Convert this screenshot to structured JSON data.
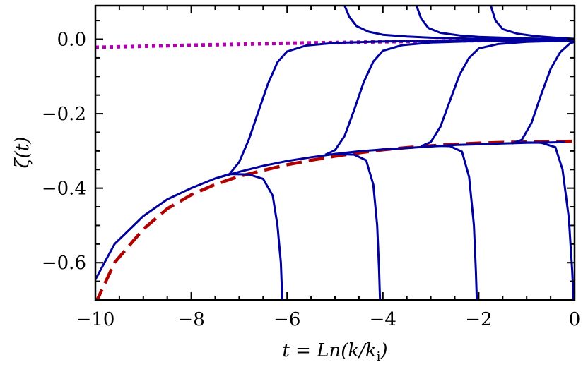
{
  "chart_data": {
    "type": "line",
    "xlabel": "t = Ln(k/k",
    "xlabel_sub": "i",
    "xlabel_close": ")",
    "ylabel": "ζ(t)",
    "xlim": [
      -10,
      0
    ],
    "ylim": [
      -0.7,
      0.09
    ],
    "x_ticks": [
      -10,
      -8,
      -6,
      -4,
      -2,
      0
    ],
    "x_tick_labels": [
      "−10",
      "−8",
      "−6",
      "−4",
      "−2",
      "0"
    ],
    "y_ticks": [
      -0.6,
      -0.4,
      -0.2,
      0.0
    ],
    "y_tick_labels": [
      "−0.6",
      "−0.4",
      "−0.2",
      "0.0"
    ],
    "grid": false,
    "colors": {
      "solid": "#0000a0",
      "dashed": "#b00000",
      "dotted": "#b000b0"
    },
    "series": [
      {
        "style": "dotted",
        "points": [
          [
            -10,
            -0.022
          ],
          [
            -8,
            -0.016
          ],
          [
            -6,
            -0.011
          ],
          [
            -4,
            -0.007
          ],
          [
            -2,
            -0.004
          ],
          [
            0,
            -0.002
          ]
        ]
      },
      {
        "style": "dashed",
        "points": [
          [
            -10,
            -0.71
          ],
          [
            -9.6,
            -0.6
          ],
          [
            -9,
            -0.51
          ],
          [
            -8.5,
            -0.455
          ],
          [
            -8,
            -0.418
          ],
          [
            -7.5,
            -0.39
          ],
          [
            -7,
            -0.368
          ],
          [
            -6.5,
            -0.352
          ],
          [
            -6,
            -0.337
          ],
          [
            -5.5,
            -0.325
          ],
          [
            -5,
            -0.314
          ],
          [
            -4.5,
            -0.305
          ],
          [
            -4,
            -0.297
          ],
          [
            -3.5,
            -0.291
          ],
          [
            -3,
            -0.286
          ],
          [
            -2.5,
            -0.282
          ],
          [
            -2,
            -0.279
          ],
          [
            -1.5,
            -0.277
          ],
          [
            -1,
            -0.276
          ],
          [
            -0.5,
            -0.275
          ],
          [
            0,
            -0.274
          ]
        ]
      },
      {
        "style": "solid",
        "points": [
          [
            -10,
            -0.645
          ],
          [
            -9.6,
            -0.55
          ],
          [
            -9,
            -0.475
          ],
          [
            -8.5,
            -0.43
          ],
          [
            -8,
            -0.4
          ],
          [
            -7.5,
            -0.374
          ],
          [
            -7,
            -0.356
          ],
          [
            -6.5,
            -0.34
          ],
          [
            -6,
            -0.327
          ],
          [
            -5.5,
            -0.317
          ],
          [
            -5,
            -0.308
          ],
          [
            -4.5,
            -0.301
          ],
          [
            -4,
            -0.296
          ],
          [
            -3.5,
            -0.292
          ],
          [
            -3,
            -0.288
          ],
          [
            -2.5,
            -0.284
          ],
          [
            -2,
            -0.282
          ],
          [
            -1.5,
            -0.28
          ],
          [
            -1,
            -0.278
          ],
          [
            -0.5,
            -0.277
          ],
          [
            -0.2,
            -0.276
          ]
        ]
      },
      {
        "style": "solid",
        "points": [
          [
            -7.5,
            -0.374
          ],
          [
            -7.2,
            -0.362
          ],
          [
            -7,
            -0.33
          ],
          [
            -6.8,
            -0.27
          ],
          [
            -6.6,
            -0.195
          ],
          [
            -6.4,
            -0.12
          ],
          [
            -6.2,
            -0.062
          ],
          [
            -6,
            -0.033
          ],
          [
            -5.6,
            -0.017
          ],
          [
            -5,
            -0.01
          ],
          [
            -4,
            -0.006
          ],
          [
            -2,
            -0.004
          ],
          [
            0,
            -0.003
          ]
        ]
      },
      {
        "style": "solid",
        "points": [
          [
            -5.2,
            -0.31
          ],
          [
            -5.0,
            -0.298
          ],
          [
            -4.8,
            -0.26
          ],
          [
            -4.6,
            -0.19
          ],
          [
            -4.4,
            -0.115
          ],
          [
            -4.2,
            -0.06
          ],
          [
            -4,
            -0.031
          ],
          [
            -3.6,
            -0.016
          ],
          [
            -3,
            -0.009
          ],
          [
            -2,
            -0.005
          ],
          [
            0,
            -0.003
          ]
        ]
      },
      {
        "style": "solid",
        "points": [
          [
            -3.2,
            -0.287
          ],
          [
            -3.0,
            -0.276
          ],
          [
            -2.8,
            -0.235
          ],
          [
            -2.6,
            -0.165
          ],
          [
            -2.4,
            -0.095
          ],
          [
            -2.2,
            -0.05
          ],
          [
            -2,
            -0.025
          ],
          [
            -1.6,
            -0.013
          ],
          [
            -1,
            -0.007
          ],
          [
            0,
            -0.004
          ]
        ]
      },
      {
        "style": "solid",
        "points": [
          [
            -1.3,
            -0.28
          ],
          [
            -1.1,
            -0.27
          ],
          [
            -0.9,
            -0.225
          ],
          [
            -0.7,
            -0.15
          ],
          [
            -0.5,
            -0.08
          ],
          [
            -0.3,
            -0.035
          ],
          [
            -0.1,
            -0.012
          ],
          [
            0,
            -0.007
          ]
        ]
      },
      {
        "style": "solid",
        "points": [
          [
            -7.2,
            -0.362
          ],
          [
            -6.8,
            -0.363
          ],
          [
            -6.5,
            -0.375
          ],
          [
            -6.3,
            -0.42
          ],
          [
            -6.2,
            -0.5
          ],
          [
            -6.13,
            -0.6
          ],
          [
            -6.1,
            -0.7
          ]
        ]
      },
      {
        "style": "solid",
        "points": [
          [
            -5.0,
            -0.308
          ],
          [
            -4.6,
            -0.31
          ],
          [
            -4.35,
            -0.325
          ],
          [
            -4.2,
            -0.39
          ],
          [
            -4.12,
            -0.5
          ],
          [
            -4.08,
            -0.62
          ],
          [
            -4.06,
            -0.7
          ]
        ]
      },
      {
        "style": "solid",
        "points": [
          [
            -3.0,
            -0.286
          ],
          [
            -2.6,
            -0.287
          ],
          [
            -2.35,
            -0.302
          ],
          [
            -2.2,
            -0.37
          ],
          [
            -2.1,
            -0.5
          ],
          [
            -2.06,
            -0.62
          ],
          [
            -2.04,
            -0.7
          ]
        ]
      },
      {
        "style": "solid",
        "points": [
          [
            -1.1,
            -0.277
          ],
          [
            -0.7,
            -0.278
          ],
          [
            -0.4,
            -0.29
          ],
          [
            -0.25,
            -0.35
          ],
          [
            -0.12,
            -0.48
          ],
          [
            -0.05,
            -0.62
          ],
          [
            -0.02,
            -0.7
          ]
        ]
      },
      {
        "style": "solid",
        "points": [
          [
            -4.8,
            0.09
          ],
          [
            -4.7,
            0.06
          ],
          [
            -4.55,
            0.035
          ],
          [
            -4.3,
            0.02
          ],
          [
            -4,
            0.012
          ],
          [
            -3.5,
            0.007
          ],
          [
            -3,
            0.004
          ],
          [
            -2,
            0.001
          ],
          [
            0,
            -0.001
          ]
        ]
      },
      {
        "style": "solid",
        "points": [
          [
            -3.3,
            0.09
          ],
          [
            -3.2,
            0.055
          ],
          [
            -3.05,
            0.03
          ],
          [
            -2.8,
            0.017
          ],
          [
            -2.4,
            0.01
          ],
          [
            -2,
            0.006
          ],
          [
            -1,
            0.002
          ],
          [
            0,
            0.0
          ]
        ]
      },
      {
        "style": "solid",
        "points": [
          [
            -1.75,
            0.09
          ],
          [
            -1.65,
            0.05
          ],
          [
            -1.5,
            0.027
          ],
          [
            -1.2,
            0.015
          ],
          [
            -0.8,
            0.008
          ],
          [
            -0.4,
            0.004
          ],
          [
            0,
            0.001
          ]
        ]
      }
    ]
  }
}
